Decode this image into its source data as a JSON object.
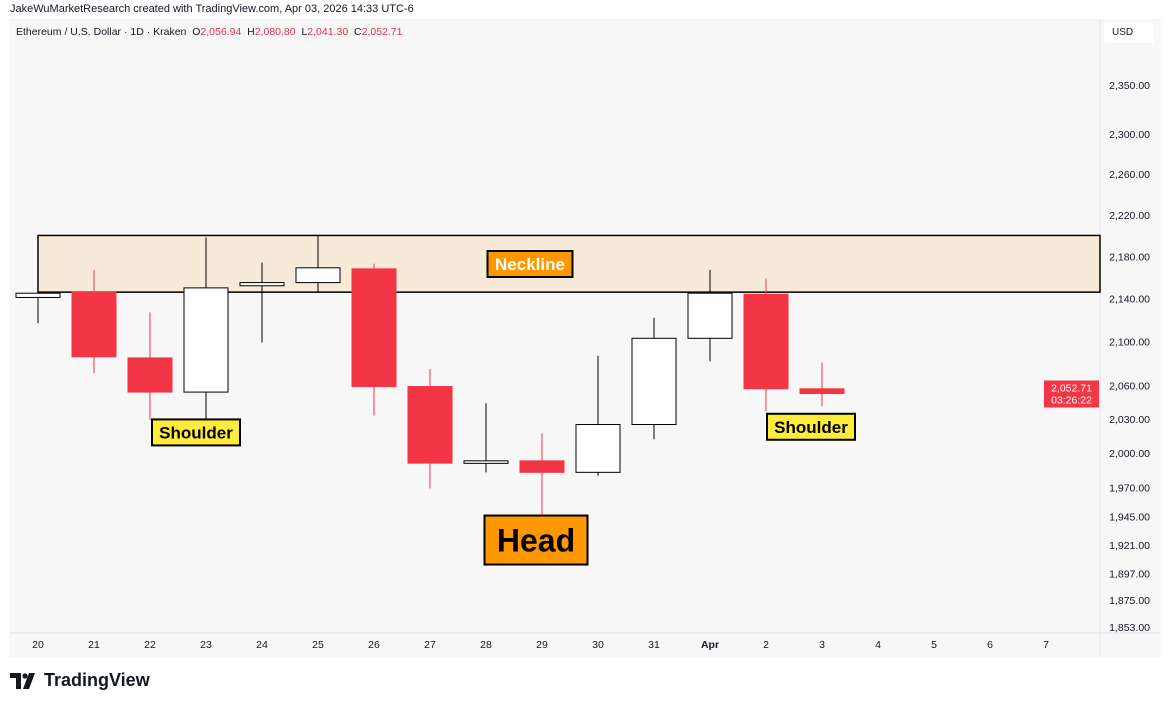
{
  "header": {
    "credit": "JakeWuMarketResearch created with TradingView.com, Apr 03, 2026 14:33 UTC-6"
  },
  "legend": {
    "symbol": "Ethereum / U.S. Dollar · 1D · Kraken",
    "o_label": "O",
    "o": "2,056.94",
    "h_label": "H",
    "h": "2,080.80",
    "l_label": "L",
    "l": "2,041.30",
    "c_label": "C",
    "c": "2,052.71"
  },
  "currency": "USD",
  "price_tag": {
    "price": "2,052.71",
    "countdown": "03:26:22"
  },
  "logo": {
    "text": "TradingView"
  },
  "colors": {
    "down": "#f23645",
    "up_fill": "#ffffff",
    "up_border": "#000000",
    "zone": "#f8ead9",
    "label_orange": "#ff9800",
    "label_yellow": "#ffeb3b"
  },
  "chart_data": {
    "type": "candlestick",
    "title": "Ethereum / U.S. Dollar · 1D · Kraken",
    "yscale": "log",
    "ylim": [
      1853,
      2350
    ],
    "y_ticks": [
      "2,350.00",
      "2,300.00",
      "2,260.00",
      "2,220.00",
      "2,180.00",
      "2,140.00",
      "2,100.00",
      "2,060.00",
      "2,030.00",
      "2,000.00",
      "1,970.00",
      "1,945.00",
      "1,921.00",
      "1,897.00",
      "1,875.00",
      "1,853.00"
    ],
    "y_tick_values": [
      2350,
      2300,
      2260,
      2220,
      2180,
      2140,
      2100,
      2060,
      2030,
      2000,
      1970,
      1945,
      1921,
      1897,
      1875,
      1853
    ],
    "x_ticks": [
      "20",
      "21",
      "22",
      "23",
      "24",
      "25",
      "26",
      "27",
      "28",
      "29",
      "30",
      "31",
      "Apr",
      "2",
      "3",
      "4",
      "5",
      "6",
      "7"
    ],
    "candles": [
      {
        "d": "20",
        "o": 2141,
        "h": 2146,
        "l": 2117,
        "c": 2145
      },
      {
        "d": "21",
        "o": 2146,
        "h": 2167,
        "l": 2071,
        "c": 2086
      },
      {
        "d": "22",
        "o": 2085,
        "h": 2127,
        "l": 2029,
        "c": 2054
      },
      {
        "d": "23",
        "o": 2054,
        "h": 2198,
        "l": 2029,
        "c": 2150
      },
      {
        "d": "24",
        "o": 2152,
        "h": 2174,
        "l": 2099,
        "c": 2155
      },
      {
        "d": "25",
        "o": 2155,
        "h": 2200,
        "l": 2146,
        "c": 2169
      },
      {
        "d": "26",
        "o": 2168,
        "h": 2173,
        "l": 2033,
        "c": 2059
      },
      {
        "d": "27",
        "o": 2059,
        "h": 2075,
        "l": 1969,
        "c": 1991
      },
      {
        "d": "28",
        "o": 1991,
        "h": 2044,
        "l": 1983,
        "c": 1993
      },
      {
        "d": "29",
        "o": 1993,
        "h": 2017,
        "l": 1936,
        "c": 1983
      },
      {
        "d": "30",
        "o": 1983,
        "h": 2087,
        "l": 1980,
        "c": 2025
      },
      {
        "d": "31",
        "o": 2025,
        "h": 2122,
        "l": 2012,
        "c": 2103
      },
      {
        "d": "Apr",
        "o": 2103,
        "h": 2167,
        "l": 2082,
        "c": 2145
      },
      {
        "d": "2",
        "o": 2144,
        "h": 2159,
        "l": 2037,
        "c": 2057
      },
      {
        "d": "3",
        "o": 2056.94,
        "h": 2080.8,
        "l": 2041.3,
        "c": 2052.71
      }
    ],
    "zone": {
      "label": "Neckline",
      "top": 2200,
      "bottom": 2146
    },
    "annotations": [
      {
        "text": "Shoulder",
        "day": "23",
        "price": 2018,
        "style": "yellow"
      },
      {
        "text": "Head",
        "day": "29",
        "price": 1925,
        "style": "orange-large"
      },
      {
        "text": "Shoulder",
        "day": "2",
        "price": 2023,
        "style": "yellow"
      }
    ]
  }
}
